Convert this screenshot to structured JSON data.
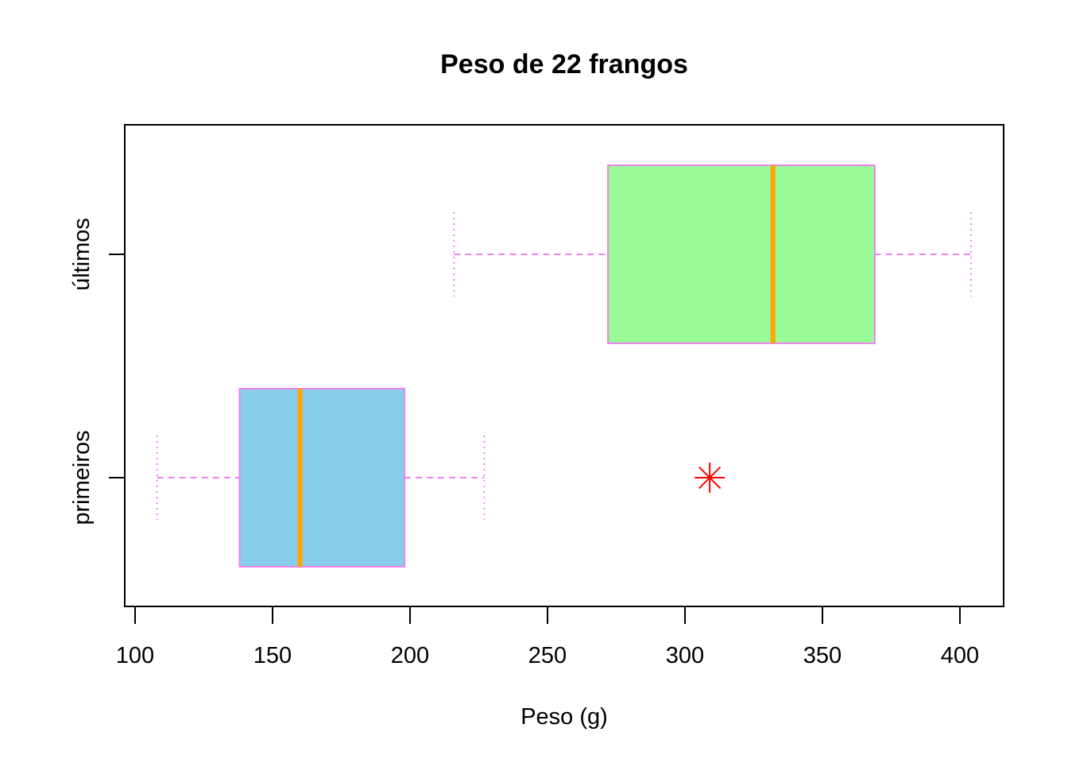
{
  "chart_data": {
    "type": "boxplot",
    "orientation": "horizontal",
    "title": "Peso de 22 frangos",
    "xlabel": "Peso (g)",
    "ylabel": "",
    "xlim": [
      96.2,
      415.9
    ],
    "xticks": [
      100,
      150,
      200,
      250,
      300,
      350,
      400
    ],
    "grid": false,
    "series": [
      {
        "name": "primeiros",
        "whisker_low": 108,
        "q1": 138,
        "median": 160,
        "q3": 198,
        "whisker_high": 227,
        "outliers": [
          309
        ],
        "fill": "#87CEEB"
      },
      {
        "name": "últimos",
        "whisker_low": 216,
        "q1": 272,
        "median": 332,
        "q3": 369,
        "whisker_high": 404,
        "outliers": [],
        "fill": "#98FB98"
      }
    ],
    "colors": {
      "border": "#EE82EE",
      "median": "#FFA500",
      "outlier": "#FF0000"
    }
  }
}
